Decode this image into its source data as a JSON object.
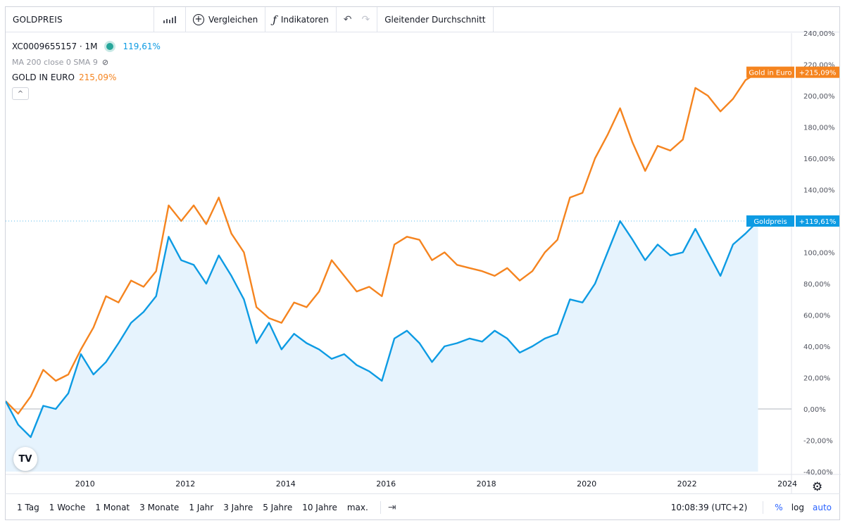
{
  "toolbar": {
    "symbol": "GOLDPREIS",
    "compare_label": "Vergleichen",
    "indicators_label": "Indikatoren",
    "moving_average_label": "Gleitender Durchschnitt"
  },
  "legend": {
    "main_symbol": "XC0009655157 · 1M",
    "main_change": "119,61%",
    "ma_label": "MA 200 close 0 SMA 9",
    "compare_symbol": "GOLD IN EURO",
    "compare_change": "215,09%"
  },
  "bottom_bar": {
    "ranges": [
      "1 Tag",
      "1 Woche",
      "1 Monat",
      "3 Monate",
      "1 Jahr",
      "3 Jahre",
      "5 Jahre",
      "10 Jahre",
      "max."
    ],
    "clock": "10:08:39 (UTC+2)",
    "percent_label": "%",
    "log_label": "log",
    "auto_label": "auto"
  },
  "colors": {
    "gold_eur": "#f5841f",
    "goldpreis": "#0d9be3",
    "area_fill": "#e6f3fd",
    "zero_line": "#b2b5be"
  },
  "chart_data": {
    "type": "line",
    "title": "",
    "xlabel": "",
    "ylabel": "",
    "x_tick_labels": [
      "2010",
      "2012",
      "2014",
      "2016",
      "2018",
      "2020",
      "2022",
      "2024"
    ],
    "y_ticks": [
      -40,
      -20,
      0,
      20,
      40,
      60,
      80,
      100,
      120,
      140,
      160,
      180,
      200,
      220,
      240
    ],
    "y_tick_labels": [
      "-40,00%",
      "-20,00%",
      "0,00%",
      "20,00%",
      "40,00%",
      "60,00%",
      "80,00%",
      "100,00%",
      "120,00%",
      "140,00%",
      "160,00%",
      "180,00%",
      "200,00%",
      "220,00%",
      "240,00%"
    ],
    "ylim": [
      -40,
      240
    ],
    "xlim": [
      "2008-06",
      "2024-02"
    ],
    "grid": false,
    "series": [
      {
        "name": "Gold in Euro",
        "label": "Gold in Euro",
        "last_label": "+215,09%",
        "color": "#f5841f",
        "area": false,
        "x": [
          "2008-06",
          "2008-09",
          "2008-12",
          "2009-03",
          "2009-06",
          "2009-09",
          "2009-12",
          "2010-03",
          "2010-06",
          "2010-09",
          "2010-12",
          "2011-03",
          "2011-06",
          "2011-09",
          "2011-12",
          "2012-03",
          "2012-06",
          "2012-09",
          "2012-12",
          "2013-03",
          "2013-06",
          "2013-09",
          "2013-12",
          "2014-03",
          "2014-06",
          "2014-09",
          "2014-12",
          "2015-03",
          "2015-06",
          "2015-09",
          "2015-12",
          "2016-03",
          "2016-06",
          "2016-09",
          "2016-12",
          "2017-03",
          "2017-06",
          "2017-09",
          "2017-12",
          "2018-03",
          "2018-06",
          "2018-09",
          "2018-12",
          "2019-03",
          "2019-06",
          "2019-09",
          "2019-12",
          "2020-03",
          "2020-06",
          "2020-09",
          "2020-12",
          "2021-03",
          "2021-06",
          "2021-09",
          "2021-12",
          "2022-03",
          "2022-06",
          "2022-09",
          "2022-12",
          "2023-03",
          "2023-06"
        ],
        "values": [
          5,
          -3,
          8,
          25,
          18,
          22,
          38,
          52,
          72,
          68,
          82,
          78,
          88,
          130,
          120,
          130,
          118,
          135,
          112,
          100,
          65,
          58,
          55,
          68,
          65,
          75,
          95,
          85,
          75,
          78,
          72,
          105,
          110,
          108,
          95,
          100,
          92,
          90,
          88,
          85,
          90,
          82,
          88,
          100,
          108,
          135,
          138,
          160,
          175,
          192,
          170,
          152,
          168,
          165,
          172,
          205,
          200,
          190,
          198,
          210,
          215
        ]
      },
      {
        "name": "Goldpreis",
        "label": "Goldpreis",
        "last_label": "+119,61%",
        "color": "#0d9be3",
        "area": true,
        "x": [
          "2008-06",
          "2008-09",
          "2008-12",
          "2009-03",
          "2009-06",
          "2009-09",
          "2009-12",
          "2010-03",
          "2010-06",
          "2010-09",
          "2010-12",
          "2011-03",
          "2011-06",
          "2011-09",
          "2011-12",
          "2012-03",
          "2012-06",
          "2012-09",
          "2012-12",
          "2013-03",
          "2013-06",
          "2013-09",
          "2013-12",
          "2014-03",
          "2014-06",
          "2014-09",
          "2014-12",
          "2015-03",
          "2015-06",
          "2015-09",
          "2015-12",
          "2016-03",
          "2016-06",
          "2016-09",
          "2016-12",
          "2017-03",
          "2017-06",
          "2017-09",
          "2017-12",
          "2018-03",
          "2018-06",
          "2018-09",
          "2018-12",
          "2019-03",
          "2019-06",
          "2019-09",
          "2019-12",
          "2020-03",
          "2020-06",
          "2020-09",
          "2020-12",
          "2021-03",
          "2021-06",
          "2021-09",
          "2021-12",
          "2022-03",
          "2022-06",
          "2022-09",
          "2022-12",
          "2023-03",
          "2023-06"
        ],
        "values": [
          5,
          -10,
          -18,
          2,
          0,
          10,
          35,
          22,
          30,
          42,
          55,
          62,
          72,
          110,
          95,
          92,
          80,
          98,
          85,
          70,
          42,
          55,
          38,
          48,
          42,
          38,
          32,
          35,
          28,
          24,
          18,
          45,
          50,
          42,
          30,
          40,
          42,
          45,
          43,
          50,
          45,
          36,
          40,
          45,
          48,
          70,
          68,
          80,
          100,
          120,
          108,
          95,
          105,
          98,
          100,
          115,
          100,
          85,
          105,
          112,
          120
        ]
      }
    ]
  }
}
